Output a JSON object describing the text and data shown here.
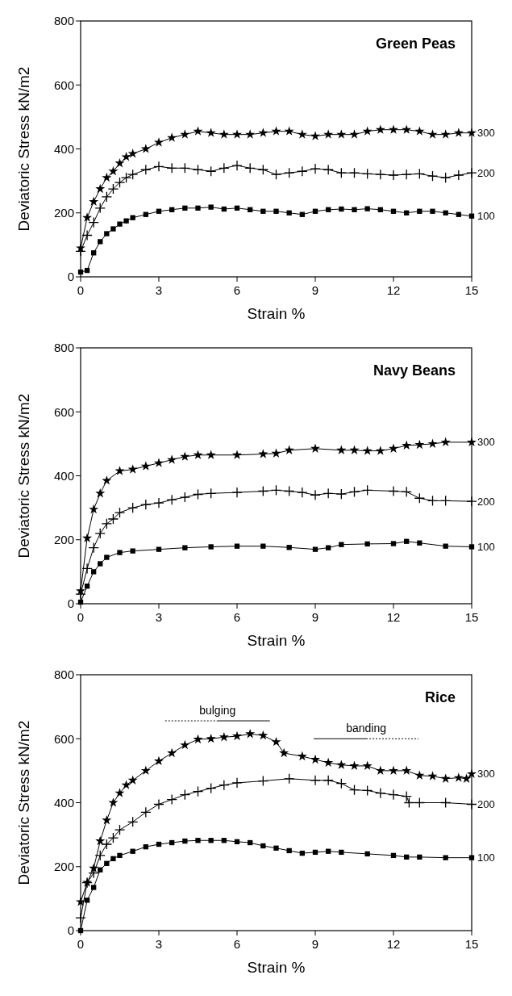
{
  "chart_data": [
    {
      "type": "line",
      "title": "Green Peas",
      "xlabel": "Strain %",
      "ylabel": "Deviatoric Stress kN/m2",
      "xlim": [
        0,
        15
      ],
      "xticks": [
        0,
        3,
        6,
        9,
        12,
        15
      ],
      "ylim": [
        0,
        800
      ],
      "yticks": [
        0,
        200,
        400,
        600,
        800
      ],
      "grid": false,
      "line_style": "solid",
      "series": [
        {
          "name": "300",
          "color": "#000000",
          "marker": "star",
          "x": [
            0,
            0.25,
            0.5,
            0.75,
            1,
            1.25,
            1.5,
            1.75,
            2,
            2.5,
            3,
            3.5,
            4,
            4.5,
            5,
            5.5,
            6,
            6.5,
            7,
            7.5,
            8,
            8.5,
            9,
            9.5,
            10,
            10.5,
            11,
            11.5,
            12,
            12.5,
            13,
            13.5,
            14,
            14.5,
            15
          ],
          "values": [
            90,
            185,
            235,
            275,
            310,
            330,
            355,
            375,
            385,
            400,
            420,
            435,
            445,
            455,
            450,
            445,
            445,
            445,
            450,
            455,
            455,
            445,
            440,
            445,
            445,
            445,
            455,
            460,
            460,
            460,
            455,
            445,
            445,
            450,
            450
          ]
        },
        {
          "name": "200",
          "color": "#000000",
          "marker": "cross",
          "x": [
            0,
            0.25,
            0.5,
            0.75,
            1,
            1.25,
            1.5,
            1.75,
            2,
            2.5,
            3,
            3.5,
            4,
            4.5,
            5,
            5.5,
            6,
            6.5,
            7,
            7.5,
            8,
            8.5,
            9,
            9.5,
            10,
            10.5,
            11,
            11.5,
            12,
            12.5,
            13,
            13.5,
            14,
            14.5,
            15
          ],
          "values": [
            80,
            130,
            170,
            215,
            250,
            275,
            295,
            310,
            320,
            335,
            345,
            340,
            340,
            335,
            330,
            340,
            348,
            340,
            335,
            320,
            325,
            330,
            338,
            335,
            325,
            325,
            322,
            320,
            318,
            320,
            322,
            315,
            310,
            318,
            325
          ]
        },
        {
          "name": "100",
          "color": "#000000",
          "marker": "square",
          "x": [
            0,
            0.25,
            0.5,
            0.75,
            1,
            1.25,
            1.5,
            1.75,
            2,
            2.5,
            3,
            3.5,
            4,
            4.5,
            5,
            5.5,
            6,
            6.5,
            7,
            7.5,
            8,
            8.5,
            9,
            9.5,
            10,
            10.5,
            11,
            11.5,
            12,
            12.5,
            13,
            13.5,
            14,
            14.5,
            15
          ],
          "values": [
            15,
            20,
            75,
            110,
            135,
            150,
            165,
            175,
            185,
            195,
            205,
            210,
            215,
            215,
            218,
            212,
            215,
            210,
            205,
            205,
            200,
            195,
            205,
            210,
            212,
            210,
            213,
            210,
            205,
            200,
            205,
            205,
            200,
            195,
            190
          ]
        }
      ]
    },
    {
      "type": "line",
      "title": "Navy Beans",
      "xlabel": "Strain %",
      "ylabel": "Deviatoric Stress kN/m2",
      "xlim": [
        0,
        15
      ],
      "xticks": [
        0,
        3,
        6,
        9,
        12,
        15
      ],
      "ylim": [
        0,
        800
      ],
      "yticks": [
        0,
        200,
        400,
        600,
        800
      ],
      "grid": false,
      "line_style": "solid",
      "series": [
        {
          "name": "300",
          "color": "#000000",
          "marker": "star",
          "x": [
            0,
            0.25,
            0.5,
            0.75,
            1,
            1.5,
            2,
            2.5,
            3,
            3.5,
            4,
            4.5,
            5,
            6,
            7,
            7.5,
            8,
            9,
            10,
            10.5,
            11,
            11.5,
            12,
            12.5,
            13,
            13.5,
            14,
            15
          ],
          "values": [
            40,
            205,
            295,
            345,
            385,
            415,
            420,
            430,
            440,
            450,
            460,
            465,
            465,
            465,
            468,
            470,
            480,
            485,
            480,
            480,
            478,
            478,
            485,
            495,
            497,
            500,
            505,
            505
          ]
        },
        {
          "name": "200",
          "color": "#000000",
          "marker": "cross",
          "x": [
            0,
            0.25,
            0.5,
            0.75,
            1,
            1.25,
            1.5,
            2,
            2.5,
            3,
            3.5,
            4,
            4.5,
            5,
            6,
            7,
            7.5,
            8,
            8.5,
            9,
            9.5,
            10,
            10.5,
            11,
            12,
            12.5,
            13,
            13.5,
            14,
            15
          ],
          "values": [
            30,
            110,
            175,
            220,
            250,
            265,
            285,
            300,
            310,
            315,
            325,
            333,
            342,
            345,
            348,
            352,
            355,
            352,
            348,
            340,
            345,
            343,
            350,
            355,
            352,
            350,
            330,
            322,
            322,
            320
          ]
        },
        {
          "name": "100",
          "color": "#000000",
          "marker": "square",
          "x": [
            0,
            0.25,
            0.5,
            0.75,
            1,
            1.5,
            2,
            3,
            4,
            5,
            6,
            7,
            8,
            9,
            9.5,
            10,
            11,
            12,
            12.5,
            13,
            14,
            15
          ],
          "values": [
            5,
            55,
            100,
            125,
            145,
            160,
            165,
            170,
            175,
            178,
            180,
            180,
            176,
            170,
            175,
            185,
            187,
            188,
            195,
            190,
            180,
            178
          ]
        }
      ]
    },
    {
      "type": "line",
      "title": "Rice",
      "xlabel": "Strain %",
      "ylabel": "Deviatoric Stress kN/m2",
      "xlim": [
        0,
        15
      ],
      "xticks": [
        0,
        3,
        6,
        9,
        12,
        15
      ],
      "ylim": [
        0,
        800
      ],
      "yticks": [
        0,
        200,
        400,
        600,
        800
      ],
      "grid": false,
      "line_style": "solid",
      "annotations": [
        "bulging",
        "banding"
      ],
      "series": [
        {
          "name": "300",
          "color": "#000000",
          "marker": "star",
          "x": [
            0,
            0.25,
            0.5,
            0.75,
            1,
            1.25,
            1.5,
            1.75,
            2,
            2.5,
            3,
            3.5,
            4,
            4.5,
            5,
            5.5,
            6,
            6.5,
            7,
            7.5,
            7.8,
            8.5,
            9,
            9.5,
            10,
            10.5,
            11,
            11.5,
            12,
            12.5,
            13,
            13.5,
            14,
            14.5,
            14.8,
            15
          ],
          "values": [
            90,
            150,
            195,
            280,
            345,
            400,
            430,
            455,
            470,
            500,
            530,
            555,
            580,
            598,
            600,
            605,
            608,
            615,
            610,
            590,
            555,
            545,
            535,
            525,
            518,
            515,
            515,
            500,
            500,
            500,
            485,
            483,
            475,
            478,
            475,
            490
          ]
        },
        {
          "name": "200",
          "color": "#000000",
          "marker": "cross",
          "x": [
            0,
            0.25,
            0.5,
            0.75,
            1,
            1.25,
            1.5,
            2,
            2.5,
            3,
            3.5,
            4,
            4.5,
            5,
            5.5,
            6,
            7,
            8,
            9,
            9.5,
            10,
            10.5,
            11,
            11.5,
            12,
            12.5,
            12.6,
            13,
            14,
            15
          ],
          "values": [
            40,
            150,
            180,
            235,
            270,
            290,
            315,
            340,
            370,
            395,
            410,
            425,
            435,
            445,
            455,
            462,
            468,
            475,
            470,
            470,
            460,
            440,
            438,
            430,
            425,
            420,
            400,
            400,
            400,
            395
          ]
        },
        {
          "name": "100",
          "color": "#000000",
          "marker": "square",
          "x": [
            0,
            0.25,
            0.5,
            0.75,
            1,
            1.25,
            1.5,
            2,
            2.5,
            3,
            3.5,
            4,
            4.5,
            5,
            5.5,
            6,
            6.5,
            7,
            7.5,
            8,
            8.5,
            9,
            9.5,
            10,
            11,
            12,
            12.5,
            13,
            14,
            15
          ],
          "values": [
            0,
            95,
            135,
            190,
            210,
            225,
            235,
            248,
            262,
            270,
            275,
            280,
            282,
            282,
            282,
            278,
            275,
            265,
            258,
            250,
            242,
            245,
            248,
            245,
            240,
            235,
            230,
            230,
            228,
            228
          ]
        }
      ]
    }
  ]
}
